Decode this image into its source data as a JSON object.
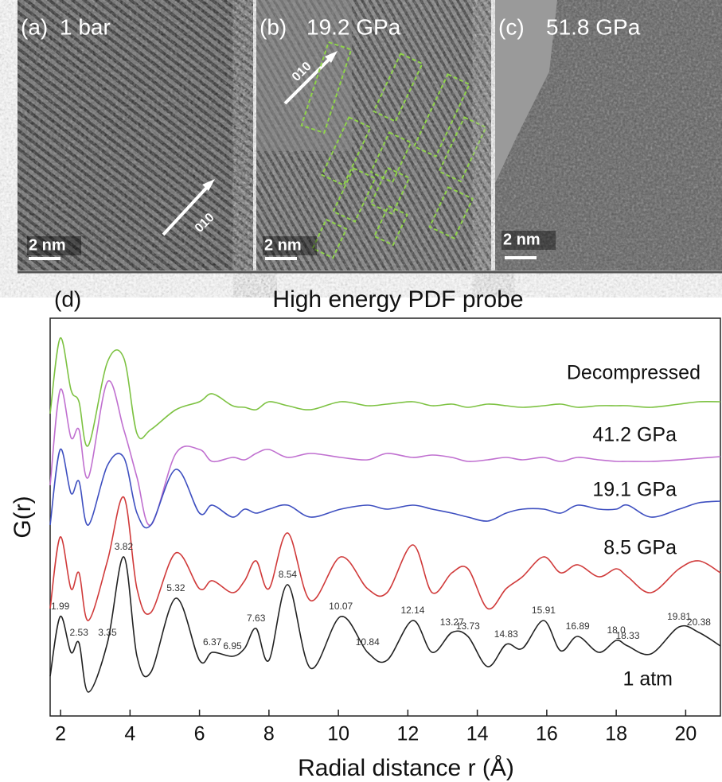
{
  "panels": [
    {
      "label": "(a)",
      "condition": "1 bar",
      "scale_bar": "2 nm",
      "direction": "010"
    },
    {
      "label": "(b)",
      "condition": "19.2 GPa",
      "scale_bar": "2 nm",
      "direction": "010"
    },
    {
      "label": "(c)",
      "condition": "51.8 GPa",
      "scale_bar": "2 nm"
    }
  ],
  "chart_data": {
    "type": "line",
    "panel_label": "(d)",
    "title": "High energy PDF probe",
    "x_label": "Radial distance r (Å)",
    "y_label": "G(r)",
    "x": [
      1.7,
      1.99,
      2.3,
      2.53,
      2.8,
      3.35,
      3.82,
      4.2,
      4.6,
      5.32,
      6.0,
      6.37,
      6.95,
      7.3,
      7.63,
      8.0,
      8.54,
      9.2,
      10.07,
      10.84,
      11.4,
      12.14,
      12.7,
      13.27,
      13.73,
      14.3,
      14.83,
      15.3,
      15.91,
      16.4,
      16.89,
      17.5,
      18.0,
      18.33,
      19.0,
      19.81,
      20.38,
      21
    ],
    "xlim": [
      1.7,
      21
    ],
    "xticks": [
      2,
      4,
      6,
      8,
      10,
      12,
      14,
      16,
      18,
      20
    ],
    "ylim": [
      0,
      100
    ],
    "series": [
      {
        "name": "Decompressed",
        "color": "#7dc242",
        "values": [
          76,
          95,
          82,
          79,
          68,
          89,
          90,
          71,
          72,
          77,
          79,
          81,
          78,
          77.6,
          77,
          79,
          78,
          77,
          79,
          78,
          78.4,
          79,
          78,
          78.4,
          77.6,
          78.4,
          78,
          77.6,
          78,
          78.4,
          77.6,
          78,
          78,
          78,
          77.6,
          78.4,
          79,
          79
        ]
      },
      {
        "name": "41.2 GPa",
        "color": "#c070d0",
        "values": [
          58,
          82,
          70,
          72,
          60,
          84,
          72,
          60,
          48,
          66,
          67,
          64,
          65,
          64.4,
          66,
          67,
          65,
          66,
          65,
          64.4,
          66,
          65,
          65.6,
          65,
          64,
          64.4,
          65,
          64.4,
          65,
          64,
          65,
          64.4,
          64,
          64,
          64,
          64.4,
          64.8,
          65.2
        ]
      },
      {
        "name": "19.1 GPa",
        "color": "#3e4fc0",
        "values": [
          48,
          67,
          56,
          59,
          48,
          63,
          65,
          51,
          48,
          62,
          51,
          53,
          50,
          52,
          51,
          52,
          53,
          50,
          52,
          53,
          52,
          53,
          52,
          51,
          50,
          49,
          51,
          52,
          52,
          51,
          53,
          52,
          52,
          53,
          50,
          52,
          53.6,
          54
        ]
      },
      {
        "name": "8.5 GPa",
        "color": "#d03a3a",
        "values": [
          27,
          45,
          32,
          36,
          24,
          39,
          55,
          32,
          26,
          41,
          32,
          34,
          31,
          34,
          39,
          32,
          46,
          29,
          40,
          32,
          31,
          43,
          31,
          36,
          37,
          27,
          32,
          35,
          40,
          36,
          38,
          35,
          37,
          35,
          31,
          37,
          39,
          36
        ]
      },
      {
        "name": "1 atm",
        "color": "#222222",
        "values": [
          10,
          25,
          16,
          18.4,
          6,
          18.4,
          40,
          15,
          11,
          29.6,
          14,
          16,
          15,
          17,
          22,
          14,
          33,
          12,
          25,
          16,
          14,
          24,
          16,
          21,
          20,
          12.4,
          18,
          17,
          24,
          16.4,
          20,
          16,
          19,
          17.6,
          15.6,
          22.4,
          21,
          17.6
        ]
      }
    ],
    "peak_labels": [
      1.99,
      2.53,
      3.35,
      3.82,
      5.32,
      6.37,
      6.95,
      7.63,
      8.54,
      10.07,
      10.84,
      12.14,
      13.27,
      13.73,
      14.83,
      15.91,
      16.89,
      {
        "value": 18,
        "label": "18.0"
      },
      18.33,
      19.81,
      20.38
    ]
  }
}
